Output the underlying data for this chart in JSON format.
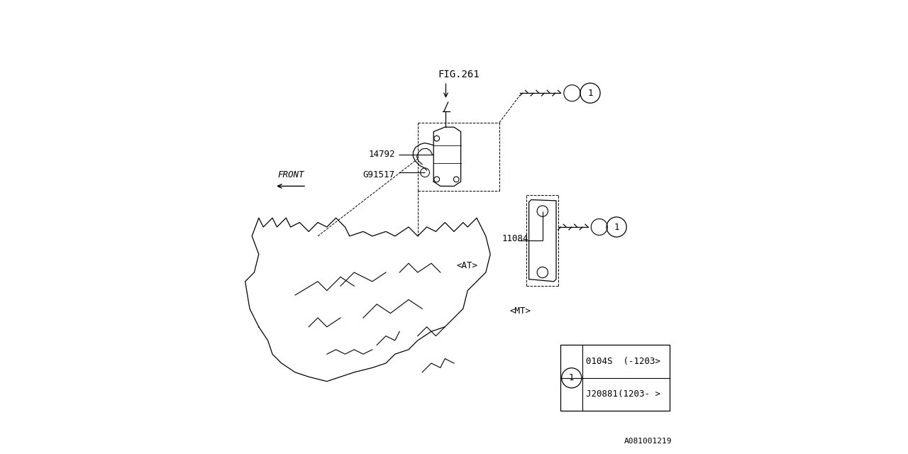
{
  "bg_color": "#ffffff",
  "line_color": "#000000",
  "fig_label": "FIG.261",
  "legend_row1": "0104S  (-1203>",
  "legend_row2": "J20881(1203- >",
  "bottom_code": "A081001219",
  "font_size": 9
}
